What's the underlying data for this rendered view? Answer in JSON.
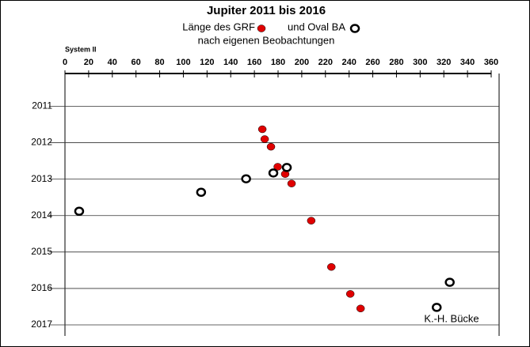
{
  "chart_data": {
    "type": "scatter",
    "title": "Jupiter 2011 bis 2016",
    "subtitle": "nach eigenen Beobachtungen",
    "xlabel": "System II",
    "annotation": "K.-H. Bücke",
    "xlim": [
      0,
      360
    ],
    "xticks": [
      0,
      20,
      40,
      60,
      80,
      100,
      120,
      140,
      160,
      180,
      200,
      220,
      240,
      260,
      280,
      300,
      320,
      340,
      360
    ],
    "ylim": [
      2010.1,
      2017
    ],
    "y_reversed": true,
    "yticks": [
      2011,
      2012,
      2013,
      2014,
      2015,
      2016,
      2017
    ],
    "grid": true,
    "series": [
      {
        "name": "Länge des GRF",
        "color": "#e00000",
        "filled": true,
        "x": [
          166.7,
          168.7,
          174,
          179.7,
          186,
          191.4,
          208,
          225,
          241,
          249.7
        ],
        "values": [
          2011.63,
          2011.9,
          2012.11,
          2012.66,
          2012.86,
          2013.12,
          2014.14,
          2015.41,
          2016.15,
          2016.55
        ]
      },
      {
        "name": "und Oval BA",
        "color": "#000000",
        "filled": false,
        "x": [
          12,
          115,
          153,
          176,
          187.4,
          325,
          314
        ],
        "values": [
          2013.88,
          2013.36,
          2012.99,
          2012.83,
          2012.68,
          2015.83,
          2016.52
        ]
      }
    ]
  }
}
